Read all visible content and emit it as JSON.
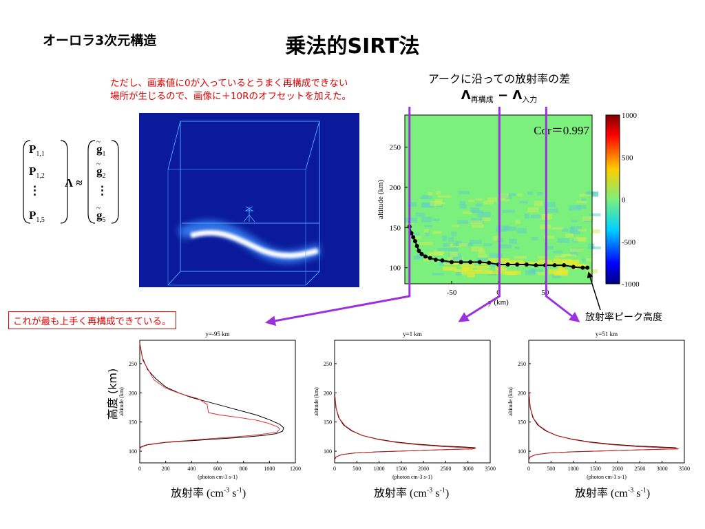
{
  "header": {
    "left_title": "オーロラ3次元構造",
    "title": "乗法的SIRT法"
  },
  "note": {
    "line1": "ただし、画素値に0が入っているとうまく再構成できない",
    "line2": "場所が生じるので、画像に＋10Rのオフセットを加えた。"
  },
  "equation": {
    "rows": [
      "P",
      "P",
      "⋮",
      "P"
    ],
    "row_sub": [
      "1,1",
      "1,2",
      "",
      "1,5"
    ],
    "operator": "Λ ≈",
    "g_rows": [
      "g",
      "g",
      "⋮",
      "g"
    ],
    "g_sub": [
      "1",
      "2",
      "",
      "5"
    ]
  },
  "diff_title": {
    "line1": "アークに沿っての放射率の差",
    "lambda": "Λ",
    "sub_recon": "再構成",
    "minus": " − ",
    "sub_input": "入力"
  },
  "callout": "これが最も上手く再構成できている。",
  "peak_label": "放射率ピーク高度",
  "ylabel_jp": "高度 (km)",
  "colors": {
    "accent_arrow": "#9b30e0",
    "image_bg": "#0a1a9a",
    "red_text": "#e00000"
  },
  "chart_data": [
    {
      "type": "heatmap",
      "annotation": "Cor＝0.997",
      "xlabel": "y (km)",
      "ylabel": "altitude (km)",
      "xticks": [
        -50,
        0,
        50
      ],
      "yticks": [
        100,
        150,
        200,
        250
      ],
      "xlim": [
        -100,
        100
      ],
      "ylim": [
        80,
        290
      ],
      "colorbar": {
        "ticks": [
          1000,
          500,
          0,
          -500,
          -1000
        ],
        "range": [
          -1000,
          1000
        ]
      },
      "peak_series": {
        "x": [
          -95,
          -93,
          -91,
          -89,
          -87,
          -85,
          -82,
          -78,
          -73,
          -67,
          -60,
          -50,
          -40,
          -30,
          -20,
          -10,
          0,
          10,
          20,
          30,
          40,
          50,
          60,
          70,
          80,
          90,
          95
        ],
        "y": [
          151,
          143,
          138,
          133,
          127,
          121,
          117,
          114,
          112,
          110,
          109,
          107,
          107,
          107,
          107,
          106,
          104,
          104,
          104,
          104,
          103,
          103,
          103,
          103,
          101,
          100,
          100
        ]
      },
      "guides_x": [
        -95,
        1,
        51
      ]
    },
    {
      "type": "line",
      "title": "y=-95 km",
      "xlabel": "(photon cm-3 s-1)",
      "ylabel": "altitude (km)",
      "xlim": [
        0,
        1200
      ],
      "ylim": [
        80,
        290
      ],
      "xticks": [
        0,
        200,
        400,
        600,
        800,
        1000,
        1200
      ],
      "yticks": [
        100,
        150,
        200,
        250
      ],
      "series": [
        {
          "color": "#000000",
          "x": [
            0,
            20,
            60,
            120,
            200,
            300,
            400,
            500,
            600,
            700,
            800,
            900,
            1000,
            1080,
            1110,
            1100,
            1050,
            950,
            800,
            600,
            400,
            200,
            60,
            10,
            0
          ],
          "y": [
            285,
            260,
            240,
            225,
            210,
            200,
            192,
            186,
            180,
            174,
            168,
            162,
            154,
            146,
            140,
            134,
            130,
            127,
            124,
            121,
            118,
            115,
            111,
            107,
            104
          ]
        },
        {
          "color": "#e02020",
          "x": [
            0,
            25,
            70,
            110,
            200,
            320,
            450,
            520,
            530,
            620,
            760,
            900,
            990,
            1060,
            1080,
            1060,
            980,
            860,
            700,
            520,
            350,
            180,
            50,
            5,
            0
          ],
          "y": [
            285,
            255,
            238,
            222,
            208,
            198,
            190,
            180,
            166,
            162,
            158,
            153,
            148,
            142,
            138,
            133,
            130,
            127,
            124,
            121,
            118,
            115,
            111,
            107,
            104
          ]
        }
      ]
    },
    {
      "type": "line",
      "title": "y=1 km",
      "xlabel": "(photon cm-3 s-1)",
      "ylabel": "altitude (km)",
      "xlim": [
        0,
        3500
      ],
      "ylim": [
        80,
        290
      ],
      "xticks": [
        0,
        500,
        1000,
        1500,
        2000,
        2500,
        3000,
        3500
      ],
      "yticks": [
        100,
        150,
        200,
        250
      ],
      "series": [
        {
          "color": "#000000",
          "x": [
            5,
            30,
            90,
            200,
            380,
            620,
            950,
            1350,
            1850,
            2400,
            2950,
            3150,
            3100,
            2600,
            1800,
            1000,
            450,
            150,
            30,
            5
          ],
          "y": [
            198,
            175,
            158,
            145,
            135,
            127,
            121,
            116,
            112,
            109,
            107,
            106,
            104,
            103,
            101,
            99,
            97,
            94,
            90,
            86
          ]
        },
        {
          "color": "#e02020",
          "x": [
            5,
            40,
            110,
            230,
            420,
            660,
            980,
            1380,
            1870,
            2420,
            2960,
            3180,
            3120,
            2620,
            1820,
            1020,
            470,
            160,
            35,
            5
          ],
          "y": [
            196,
            172,
            156,
            144,
            134,
            126,
            120,
            115,
            111,
            108,
            106,
            105,
            104,
            103,
            101,
            99,
            97,
            94,
            90,
            86
          ]
        }
      ]
    },
    {
      "type": "line",
      "title": "y=51 km",
      "xlabel": "(photon cm-3 s-1)",
      "ylabel": "altitude (km)",
      "xlim": [
        0,
        3500
      ],
      "ylim": [
        80,
        290
      ],
      "xticks": [
        0,
        500,
        1000,
        1500,
        2000,
        2500,
        3000,
        3500
      ],
      "yticks": [
        100,
        150,
        200,
        250
      ],
      "series": [
        {
          "color": "#000000",
          "x": [
            5,
            30,
            90,
            200,
            380,
            620,
            950,
            1350,
            1850,
            2400,
            3000,
            3300,
            3350,
            2800,
            1900,
            1000,
            450,
            150,
            30,
            5
          ],
          "y": [
            200,
            176,
            158,
            145,
            135,
            127,
            121,
            116,
            112,
            109,
            107,
            106,
            104,
            103,
            101,
            99,
            97,
            94,
            90,
            86
          ]
        },
        {
          "color": "#e02020",
          "x": [
            5,
            40,
            110,
            230,
            420,
            660,
            980,
            1380,
            1870,
            2420,
            3020,
            3320,
            3370,
            2820,
            1920,
            1020,
            470,
            160,
            35,
            5
          ],
          "y": [
            198,
            173,
            156,
            144,
            134,
            126,
            120,
            115,
            111,
            108,
            106,
            105,
            104,
            103,
            101,
            99,
            97,
            94,
            90,
            86
          ]
        }
      ]
    }
  ],
  "xlabel_jp": {
    "label": "放射率 (cm",
    "exp1": "-3",
    "mid": " s",
    "exp2": "-1",
    "end": ")"
  }
}
